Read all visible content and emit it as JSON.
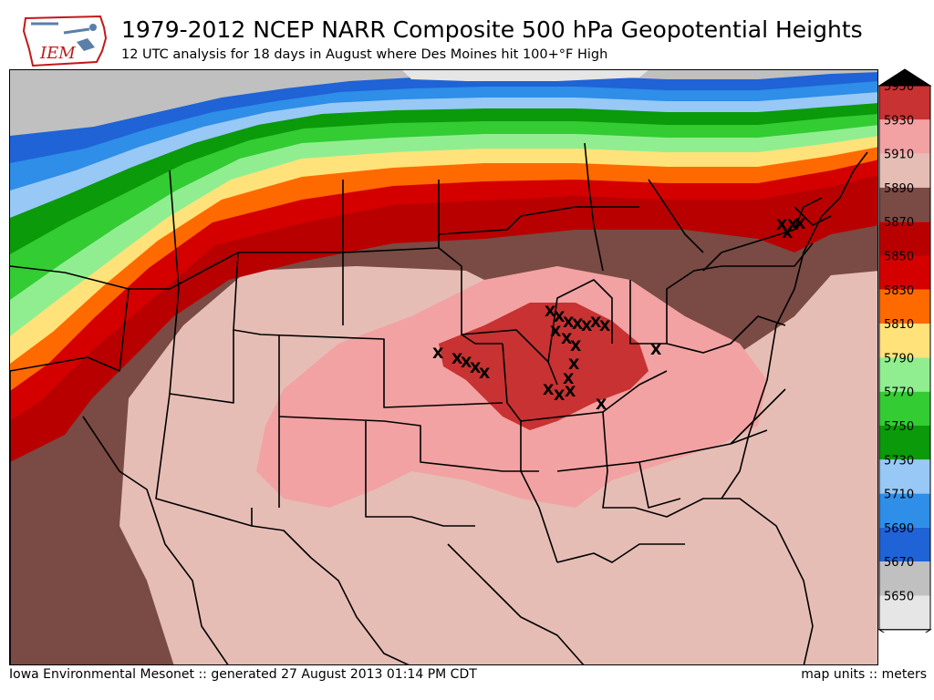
{
  "header": {
    "logo_text": "IEM",
    "title": "1979-2012 NCEP NARR Composite 500 hPa Geopotential Heights",
    "subtitle": "12 UTC analysis for 18 days in August where Des Moines hit 100+°F High"
  },
  "footer": {
    "left": "Iowa Environmental Mesonet :: generated 27 August 2013 01:14 PM CDT",
    "right": "map units :: meters"
  },
  "legend": {
    "levels": [
      5650,
      5670,
      5690,
      5710,
      5730,
      5750,
      5770,
      5790,
      5810,
      5830,
      5850,
      5870,
      5890,
      5910,
      5930,
      5950
    ],
    "colors": [
      "#e6e6e6",
      "#c0c0c0",
      "#1f63d6",
      "#2e8ee8",
      "#98c8f5",
      "#0a9a0a",
      "#33cc33",
      "#90ee90",
      "#ffe27a",
      "#ff6a00",
      "#d40000",
      "#b80000",
      "#7a4a44",
      "#e6bdb5",
      "#f2a2a2",
      "#c83232",
      "#000000"
    ]
  },
  "markers": {
    "symbol": "X"
  },
  "colors": {
    "land_base": "#e6bdb5",
    "border": "#000000"
  }
}
